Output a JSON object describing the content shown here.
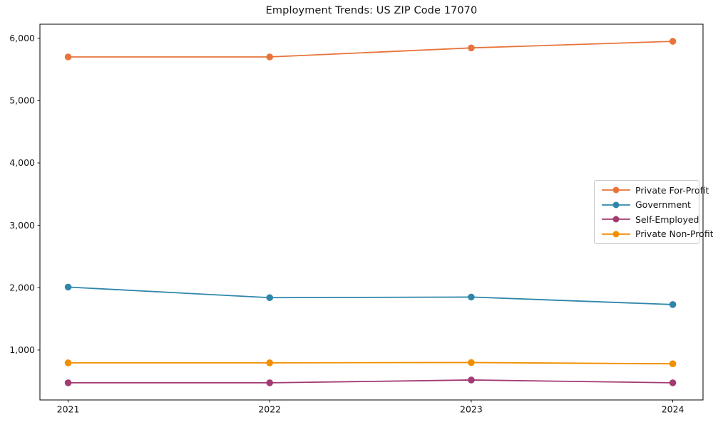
{
  "title": "Employment Trends: US ZIP Code 17070",
  "chart_data": {
    "type": "line",
    "title": "Employment Trends: US ZIP Code 17070",
    "xlabel": "",
    "ylabel": "",
    "x": [
      2021,
      2022,
      2023,
      2024
    ],
    "x_tick_labels": [
      "2021",
      "2022",
      "2023",
      "2024"
    ],
    "y_ticks": [
      1000,
      2000,
      3000,
      4000,
      5000,
      6000
    ],
    "y_tick_labels": [
      "1,000",
      "2,000",
      "3,000",
      "4,000",
      "5,000",
      "6,000"
    ],
    "xlim": [
      2020.86,
      2024.15
    ],
    "ylim": [
      200,
      6225
    ],
    "grid": false,
    "legend_position": "right-middle",
    "marker": "circle",
    "background": "#ffffff",
    "axis_color": "#000000",
    "text_color": "#151515",
    "series": [
      {
        "name": "Private For-Profit",
        "color": "#E8743B",
        "values": [
          5700,
          5700,
          5845,
          5950
        ]
      },
      {
        "name": "Government",
        "color": "#2E86AB",
        "values": [
          2010,
          1840,
          1850,
          1730
        ]
      },
      {
        "name": "Self-Employed",
        "color": "#A23B72",
        "values": [
          475,
          475,
          520,
          475
        ]
      },
      {
        "name": "Private Non-Profit",
        "color": "#F18F01",
        "values": [
          795,
          795,
          800,
          780
        ]
      }
    ]
  }
}
